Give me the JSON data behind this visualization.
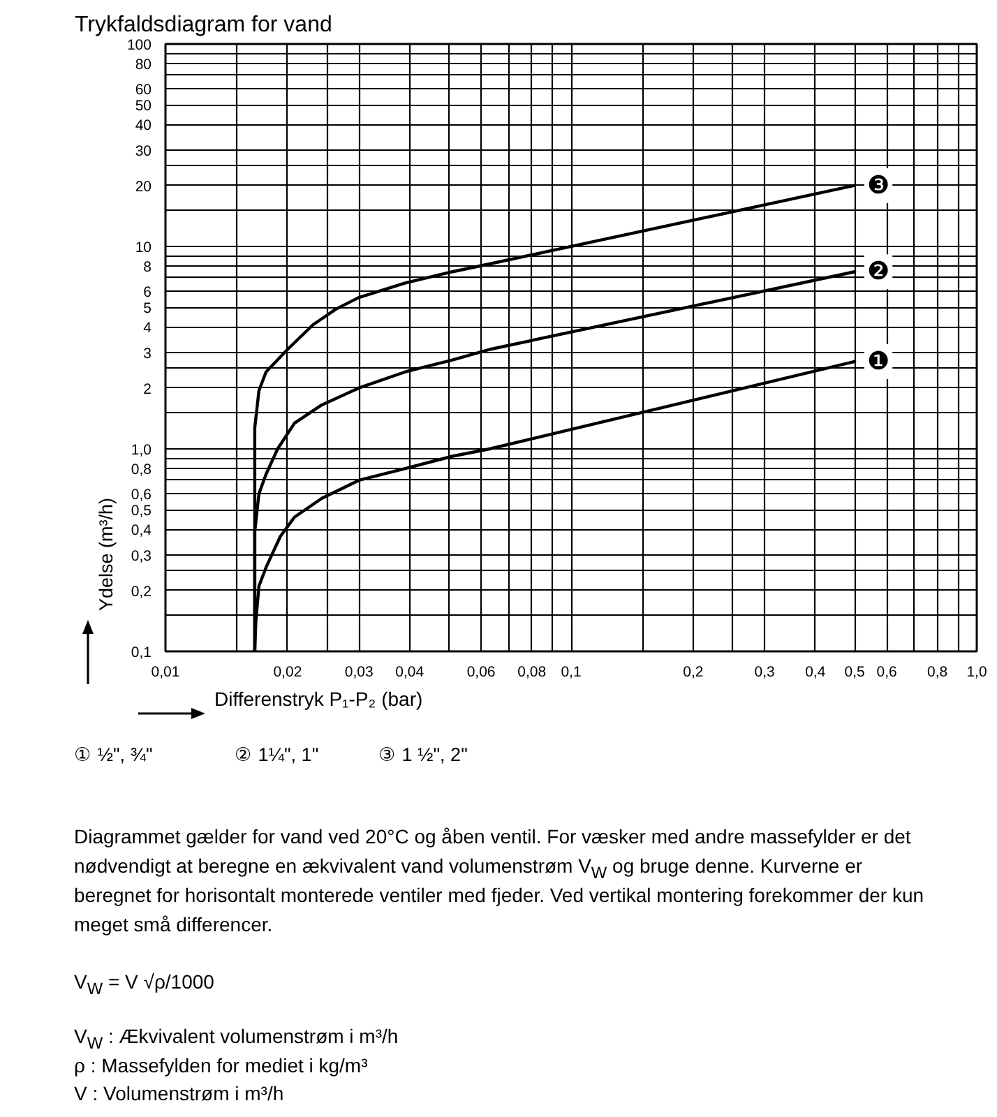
{
  "chart_data": {
    "type": "line",
    "title": "Trykfaldsdiagram for vand",
    "xlabel": "Differenstryk P₁-P₂ (bar)",
    "ylabel": "Ydelse (m³/h)",
    "log": "xy",
    "xlim": [
      0.01,
      1.0
    ],
    "ylim": [
      0.1,
      100
    ],
    "xticks": [
      {
        "value": 0.01,
        "label": "0,01"
      },
      {
        "value": 0.015,
        "label": null
      },
      {
        "value": 0.02,
        "label": "0,02"
      },
      {
        "value": 0.025,
        "label": null
      },
      {
        "value": 0.03,
        "label": "0,03"
      },
      {
        "value": 0.04,
        "label": "0,04"
      },
      {
        "value": 0.05,
        "label": null
      },
      {
        "value": 0.06,
        "label": "0,06"
      },
      {
        "value": 0.07,
        "label": null
      },
      {
        "value": 0.08,
        "label": "0,08"
      },
      {
        "value": 0.09,
        "label": null
      },
      {
        "value": 0.1,
        "label": "0,1"
      },
      {
        "value": 0.15,
        "label": null
      },
      {
        "value": 0.2,
        "label": "0,2"
      },
      {
        "value": 0.25,
        "label": null
      },
      {
        "value": 0.3,
        "label": "0,3"
      },
      {
        "value": 0.4,
        "label": "0,4"
      },
      {
        "value": 0.5,
        "label": "0,5"
      },
      {
        "value": 0.6,
        "label": "0,6"
      },
      {
        "value": 0.7,
        "label": null
      },
      {
        "value": 0.8,
        "label": "0,8"
      },
      {
        "value": 0.9,
        "label": null
      },
      {
        "value": 1.0,
        "label": "1,0"
      }
    ],
    "yticks": [
      {
        "value": 0.1,
        "label": "0,1"
      },
      {
        "value": 0.15,
        "label": null
      },
      {
        "value": 0.2,
        "label": "0,2"
      },
      {
        "value": 0.25,
        "label": null
      },
      {
        "value": 0.3,
        "label": "0,3"
      },
      {
        "value": 0.4,
        "label": "0,4"
      },
      {
        "value": 0.5,
        "label": "0,5"
      },
      {
        "value": 0.6,
        "label": "0,6"
      },
      {
        "value": 0.7,
        "label": null
      },
      {
        "value": 0.8,
        "label": "0,8"
      },
      {
        "value": 0.9,
        "label": null
      },
      {
        "value": 1.0,
        "label": "1,0"
      },
      {
        "value": 1.5,
        "label": null
      },
      2,
      {
        "value": 2.5,
        "label": null
      },
      3,
      4,
      5,
      6,
      {
        "value": 7,
        "label": null
      },
      8,
      {
        "value": 9,
        "label": null
      },
      10,
      {
        "value": 15,
        "label": null
      },
      20,
      {
        "value": 25,
        "label": null
      },
      30,
      40,
      50,
      60,
      {
        "value": 70,
        "label": null
      },
      80,
      {
        "value": 90,
        "label": null
      },
      100
    ],
    "grid": true,
    "series": [
      {
        "name": "❶",
        "color": "#000000",
        "x": [
          0.0166,
          0.0167,
          0.017,
          0.0177,
          0.0192,
          0.0208,
          0.0243,
          0.03,
          0.039,
          0.051,
          0.063,
          0.5
        ],
        "values": [
          0.1,
          0.14,
          0.21,
          0.26,
          0.37,
          0.46,
          0.57,
          0.7,
          0.8,
          0.92,
          1.0,
          2.7
        ]
      },
      {
        "name": "❷",
        "color": "#000000",
        "x": [
          0.0166,
          0.0166,
          0.017,
          0.0177,
          0.0189,
          0.0208,
          0.0243,
          0.03,
          0.039,
          0.051,
          0.063,
          0.5
        ],
        "values": [
          0.1,
          0.39,
          0.6,
          0.75,
          1.0,
          1.34,
          1.65,
          2.0,
          2.4,
          2.75,
          3.1,
          7.5
        ]
      },
      {
        "name": "❸",
        "color": "#000000",
        "x": [
          0.0166,
          0.0166,
          0.017,
          0.0177,
          0.02,
          0.0231,
          0.0263,
          0.03,
          0.039,
          0.051,
          0.063,
          0.5
        ],
        "values": [
          0.1,
          1.27,
          1.94,
          2.4,
          3.1,
          4.1,
          4.9,
          5.6,
          6.6,
          7.5,
          8.2,
          20
        ]
      }
    ],
    "annotations": [
      "① ½\", ¾\"",
      "② 1¼\", 1\"",
      "③ 1 ½\", 2\"",
      "Diagrammet gælder for vand ved 20°C og åben ventil. For væsker med andre massefylder er det nødvendigt at beregne en ækvivalent vand volumenstrøm V$_{W}$ og bruge denne. Kurverne er beregnet for horisontalt monterede ventiler med fjeder. Ved vertikal montering forekommer der kun meget små differencer.",
      "V$_{W}$ = V √ρ/1000",
      "V$_{W}$ : Ækvivalent volumenstrøm i m³/h",
      "ρ : Massefylden for mediet i kg/m³",
      "V : Volumenstrøm i m³/h"
    ]
  }
}
